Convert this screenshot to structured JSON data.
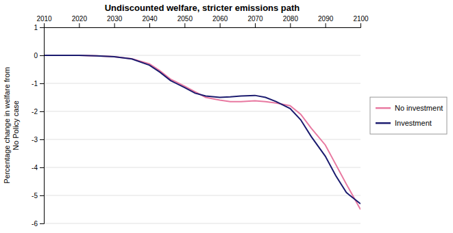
{
  "chart_data": {
    "type": "line",
    "title": "Undiscounted welfare, stricter emissions path",
    "ylabel": "Percentage change in welfare from\nNo Policy case",
    "x": [
      2010,
      2013,
      2016,
      2020,
      2025,
      2030,
      2035,
      2040,
      2043,
      2046,
      2050,
      2053,
      2056,
      2060,
      2063,
      2066,
      2070,
      2073,
      2076,
      2080,
      2083,
      2086,
      2090,
      2093,
      2096,
      2100
    ],
    "series": [
      {
        "name": "No investment",
        "color": "#e878a0",
        "values": [
          0.0,
          0.0,
          0.0,
          0.0,
          -0.02,
          -0.05,
          -0.12,
          -0.3,
          -0.55,
          -0.85,
          -1.1,
          -1.3,
          -1.5,
          -1.6,
          -1.65,
          -1.65,
          -1.62,
          -1.65,
          -1.7,
          -1.8,
          -2.1,
          -2.6,
          -3.2,
          -3.9,
          -4.6,
          -5.5
        ]
      },
      {
        "name": "Investment",
        "color": "#1a1a6e",
        "values": [
          0.0,
          0.0,
          0.0,
          0.0,
          -0.02,
          -0.05,
          -0.13,
          -0.35,
          -0.6,
          -0.9,
          -1.15,
          -1.35,
          -1.45,
          -1.5,
          -1.48,
          -1.45,
          -1.43,
          -1.5,
          -1.65,
          -1.9,
          -2.3,
          -2.9,
          -3.6,
          -4.3,
          -4.9,
          -5.3
        ]
      }
    ],
    "xlim": [
      2010,
      2100
    ],
    "ylim": [
      -6,
      1
    ],
    "xticks": [
      2010,
      2020,
      2030,
      2040,
      2050,
      2060,
      2070,
      2080,
      2090,
      2100
    ],
    "yticks": [
      1,
      0,
      -1,
      -2,
      -3,
      -4,
      -5,
      -6
    ],
    "grid": true,
    "legend": "right"
  }
}
